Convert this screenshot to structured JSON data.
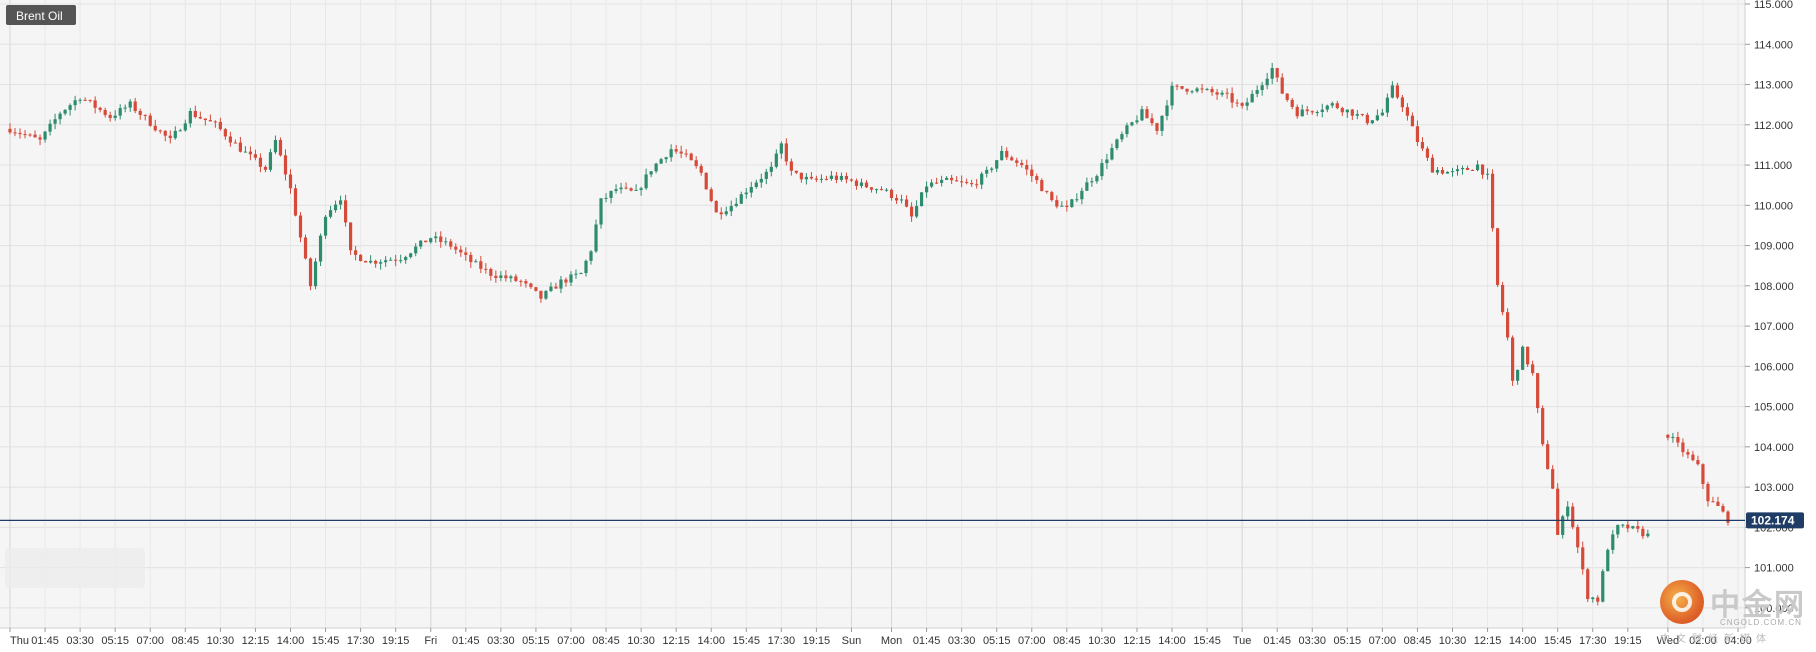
{
  "chart_data": {
    "type": "candlestick",
    "title": "Brent Oil",
    "current_price": "102.174",
    "ylim": [
      99.5,
      115.1
    ],
    "y_ticks": [
      "115.000",
      "114.000",
      "113.000",
      "112.000",
      "111.000",
      "110.000",
      "109.000",
      "108.000",
      "107.000",
      "106.000",
      "105.000",
      "104.000",
      "103.000",
      "102.000",
      "101.000",
      "100.000"
    ],
    "x_ticks": [
      {
        "t": 0,
        "label": "Thu"
      },
      {
        "t": 7,
        "label": "01:45"
      },
      {
        "t": 14,
        "label": "03:30"
      },
      {
        "t": 21,
        "label": "05:15"
      },
      {
        "t": 28,
        "label": "07:00"
      },
      {
        "t": 35,
        "label": "08:45"
      },
      {
        "t": 42,
        "label": "10:30"
      },
      {
        "t": 49,
        "label": "12:15"
      },
      {
        "t": 56,
        "label": "14:00"
      },
      {
        "t": 63,
        "label": "15:45"
      },
      {
        "t": 70,
        "label": "17:30"
      },
      {
        "t": 77,
        "label": "19:15"
      },
      {
        "t": 84,
        "label": "Fri"
      },
      {
        "t": 91,
        "label": "01:45"
      },
      {
        "t": 98,
        "label": "03:30"
      },
      {
        "t": 105,
        "label": "05:15"
      },
      {
        "t": 112,
        "label": "07:00"
      },
      {
        "t": 119,
        "label": "08:45"
      },
      {
        "t": 126,
        "label": "10:30"
      },
      {
        "t": 133,
        "label": "12:15"
      },
      {
        "t": 140,
        "label": "14:00"
      },
      {
        "t": 147,
        "label": "15:45"
      },
      {
        "t": 154,
        "label": "17:30"
      },
      {
        "t": 161,
        "label": "19:15"
      },
      {
        "t": 168,
        "label": "Sun"
      },
      {
        "t": 176,
        "label": "Mon"
      },
      {
        "t": 183,
        "label": "01:45"
      },
      {
        "t": 190,
        "label": "03:30"
      },
      {
        "t": 197,
        "label": "05:15"
      },
      {
        "t": 204,
        "label": "07:00"
      },
      {
        "t": 211,
        "label": "08:45"
      },
      {
        "t": 218,
        "label": "10:30"
      },
      {
        "t": 225,
        "label": "12:15"
      },
      {
        "t": 232,
        "label": "14:00"
      },
      {
        "t": 239,
        "label": "15:45"
      },
      {
        "t": 246,
        "label": "Tue"
      },
      {
        "t": 253,
        "label": "01:45"
      },
      {
        "t": 260,
        "label": "03:30"
      },
      {
        "t": 267,
        "label": "05:15"
      },
      {
        "t": 274,
        "label": "07:00"
      },
      {
        "t": 281,
        "label": "08:45"
      },
      {
        "t": 288,
        "label": "10:30"
      },
      {
        "t": 295,
        "label": "12:15"
      },
      {
        "t": 302,
        "label": "14:00"
      },
      {
        "t": 309,
        "label": "15:45"
      },
      {
        "t": 316,
        "label": "17:30"
      },
      {
        "t": 323,
        "label": "19:15"
      },
      {
        "t": 331,
        "label": "Wed"
      },
      {
        "t": 338,
        "label": "02:00"
      },
      {
        "t": 345,
        "label": "04:00"
      }
    ],
    "x_range": [
      0,
      345
    ],
    "day_separators": [
      0,
      84,
      168,
      176,
      246,
      331
    ],
    "colors": {
      "up": "#2e8b6e",
      "down": "#d64a3a",
      "price_line": "#1f3c66"
    },
    "path": [
      [
        0,
        111.9
      ],
      [
        6,
        111.6
      ],
      [
        10,
        112.3
      ],
      [
        14,
        112.7
      ],
      [
        20,
        112.2
      ],
      [
        24,
        112.5
      ],
      [
        32,
        111.6
      ],
      [
        36,
        112.3
      ],
      [
        41,
        112.0
      ],
      [
        46,
        111.4
      ],
      [
        51,
        110.9
      ],
      [
        53,
        111.6
      ],
      [
        56,
        110.4
      ],
      [
        60,
        108.0
      ],
      [
        63,
        109.8
      ],
      [
        66,
        110.2
      ],
      [
        68,
        108.8
      ],
      [
        72,
        108.6
      ],
      [
        78,
        108.7
      ],
      [
        84,
        109.2
      ],
      [
        88,
        109.0
      ],
      [
        92,
        108.6
      ],
      [
        96,
        108.3
      ],
      [
        102,
        108.1
      ],
      [
        106,
        107.7
      ],
      [
        110,
        108.1
      ],
      [
        114,
        108.3
      ],
      [
        116,
        108.9
      ],
      [
        118,
        110.1
      ],
      [
        121,
        110.4
      ],
      [
        125,
        110.3
      ],
      [
        128,
        110.9
      ],
      [
        132,
        111.4
      ],
      [
        135,
        111.2
      ],
      [
        138,
        110.8
      ],
      [
        141,
        109.8
      ],
      [
        144,
        110.0
      ],
      [
        148,
        110.5
      ],
      [
        152,
        110.9
      ],
      [
        154,
        111.5
      ],
      [
        156,
        110.8
      ],
      [
        160,
        110.6
      ],
      [
        164,
        110.7
      ],
      [
        168,
        110.6
      ],
      [
        170,
        110.5
      ],
      [
        174,
        110.4
      ],
      [
        178,
        110.1
      ],
      [
        180,
        109.7
      ],
      [
        183,
        110.5
      ],
      [
        187,
        110.6
      ],
      [
        192,
        110.5
      ],
      [
        195,
        110.8
      ],
      [
        198,
        111.3
      ],
      [
        202,
        111.0
      ],
      [
        205,
        110.6
      ],
      [
        208,
        110.1
      ],
      [
        211,
        109.9
      ],
      [
        214,
        110.4
      ],
      [
        217,
        110.8
      ],
      [
        220,
        111.4
      ],
      [
        223,
        111.9
      ],
      [
        226,
        112.3
      ],
      [
        229,
        111.9
      ],
      [
        232,
        112.9
      ],
      [
        236,
        112.9
      ],
      [
        240,
        112.8
      ],
      [
        243,
        112.7
      ],
      [
        246,
        112.4
      ],
      [
        249,
        112.9
      ],
      [
        252,
        113.4
      ],
      [
        254,
        112.8
      ],
      [
        257,
        112.3
      ],
      [
        261,
        112.4
      ],
      [
        264,
        112.5
      ],
      [
        268,
        112.3
      ],
      [
        271,
        112.1
      ],
      [
        274,
        112.3
      ],
      [
        276,
        112.9
      ],
      [
        278,
        112.5
      ],
      [
        281,
        111.6
      ],
      [
        284,
        110.9
      ],
      [
        288,
        110.8
      ],
      [
        291,
        110.9
      ],
      [
        293,
        111.0
      ],
      [
        295,
        110.7
      ],
      [
        297,
        108.0
      ],
      [
        299,
        106.7
      ],
      [
        300,
        105.6
      ],
      [
        302,
        106.4
      ],
      [
        304,
        105.8
      ],
      [
        306,
        104.0
      ],
      [
        308,
        103.0
      ],
      [
        309,
        101.8
      ],
      [
        311,
        102.6
      ],
      [
        313,
        101.5
      ],
      [
        315,
        100.3
      ],
      [
        317,
        100.2
      ],
      [
        319,
        101.5
      ],
      [
        321,
        102.0
      ],
      [
        323,
        102.0
      ],
      [
        325,
        101.9
      ],
      [
        327,
        101.8
      ]
    ],
    "path2": [
      [
        331,
        104.3
      ],
      [
        334,
        103.9
      ],
      [
        337,
        103.5
      ],
      [
        339,
        102.7
      ],
      [
        341,
        102.5
      ],
      [
        343,
        102.2
      ]
    ]
  },
  "watermark": {
    "name": "中金网",
    "domain": "CNGOLD.COM.CN",
    "subtitle": "中文财经新媒体"
  }
}
